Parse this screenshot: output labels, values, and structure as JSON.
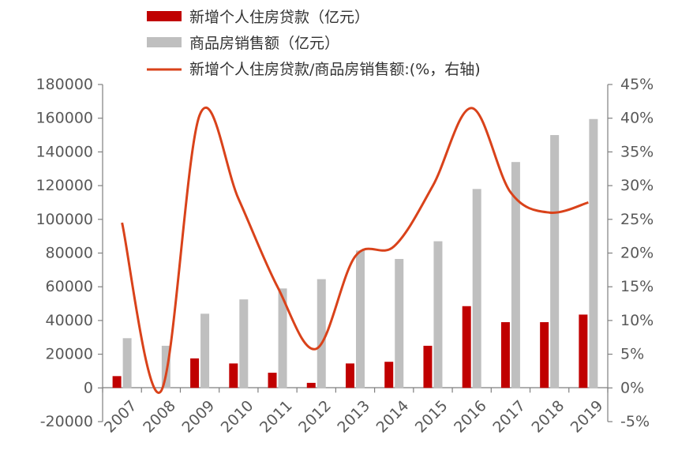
{
  "colors": {
    "loans": "#C00000",
    "sales": "#BFBFBF",
    "ratio": "#D9421A",
    "axis": "#7F7F7F",
    "text": "#595959"
  },
  "chart_data": {
    "type": "bar",
    "categories": [
      "2007",
      "2008",
      "2009",
      "2010",
      "2011",
      "2012",
      "2013",
      "2014",
      "2015",
      "2016",
      "2017",
      "2018",
      "2019"
    ],
    "series": [
      {
        "name": "新增个人住房贷款（亿元）",
        "type": "bar",
        "axis": "left",
        "values": [
          7000,
          0,
          17500,
          14500,
          9000,
          3000,
          14500,
          15500,
          25000,
          48500,
          39000,
          39000,
          43500
        ]
      },
      {
        "name": "商品房销售额（亿元）",
        "type": "bar",
        "axis": "left",
        "values": [
          29500,
          25000,
          44000,
          52500,
          59000,
          64500,
          81500,
          76500,
          87000,
          118000,
          134000,
          150000,
          159500
        ]
      },
      {
        "name": "新增个人住房贷款/商品房销售额:(%，右轴)",
        "type": "line",
        "axis": "right",
        "values": [
          24.5,
          -0.5,
          40.5,
          28,
          15,
          5.8,
          19.5,
          21,
          30,
          41.5,
          29,
          26,
          27.5
        ]
      }
    ],
    "y_left": {
      "ticks": [
        "180000",
        "160000",
        "140000",
        "120000",
        "100000",
        "80000",
        "60000",
        "40000",
        "20000",
        "0",
        "-20000"
      ],
      "ylim": [
        -20000,
        180000
      ]
    },
    "y_right": {
      "ticks": [
        "45%",
        "40%",
        "35%",
        "30%",
        "25%",
        "20%",
        "15%",
        "10%",
        "5%",
        "0%",
        "-5%"
      ],
      "ylim": [
        -5,
        45
      ]
    },
    "legend_position": "top",
    "grid": false
  }
}
